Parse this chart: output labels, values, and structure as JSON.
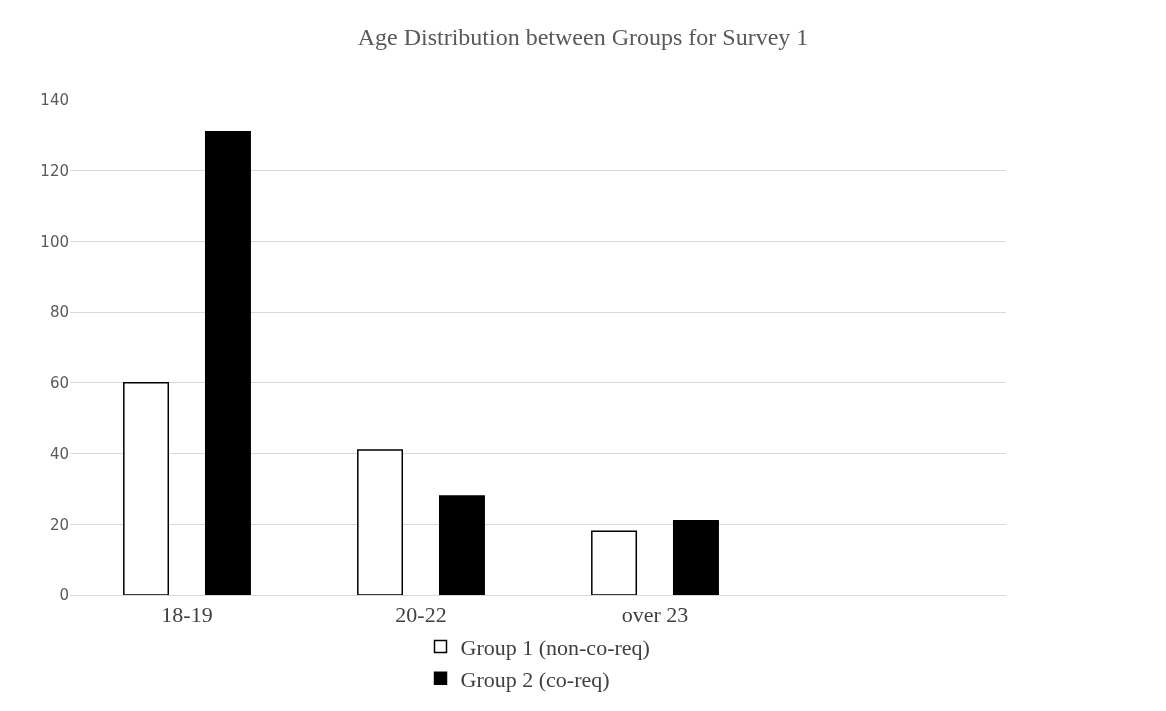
{
  "chart_data": {
    "type": "bar",
    "title": "Age Distribution between Groups for Survey 1",
    "categories": [
      "18-19",
      "20-22",
      "over 23",
      null
    ],
    "series": [
      {
        "name": "Group 1 (non-co-req)",
        "color": "#ffffff",
        "values": [
          60,
          41,
          18,
          null
        ]
      },
      {
        "name": "Group 2 (co-req)",
        "color": "#000000",
        "values": [
          131,
          28,
          21,
          null
        ]
      }
    ],
    "ylim": [
      0,
      140
    ],
    "yticks": [
      0,
      20,
      40,
      60,
      80,
      100,
      120,
      140
    ],
    "grid": "y",
    "legend": "bottom"
  }
}
